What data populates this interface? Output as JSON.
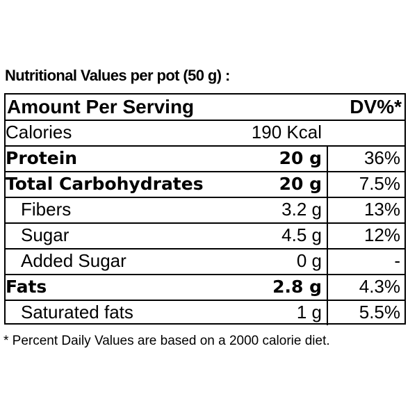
{
  "title": "Nutritional Values per pot (50 g) :",
  "table": {
    "header": {
      "label": "Amount Per Serving",
      "dv": "DV%*"
    },
    "rows": [
      {
        "label": "Calories",
        "amount": "190 Kcal"
      },
      {
        "label": "Protein",
        "amount": "20 g",
        "dv": "36%",
        "bold": true
      },
      {
        "label": "Total Carbohydrates",
        "amount": "20 g",
        "dv": "7.5%",
        "bold": true
      },
      {
        "label": "Fibers",
        "amount": "3.2 g",
        "dv": "13%",
        "indent": true
      },
      {
        "label": "Sugar",
        "amount": "4.5 g",
        "dv": "12%",
        "indent": true
      },
      {
        "label": "Added Sugar",
        "amount": "0 g",
        "dv": "-",
        "indent": true
      },
      {
        "label": "Fats",
        "amount": "2.8 g",
        "dv": "4.3%",
        "bold": true
      },
      {
        "label": "Saturated fats",
        "amount": "1 g",
        "dv": "5.5%",
        "indent": true
      }
    ]
  },
  "footnote": "* Percent Daily Values are based on a 2000 calorie diet."
}
